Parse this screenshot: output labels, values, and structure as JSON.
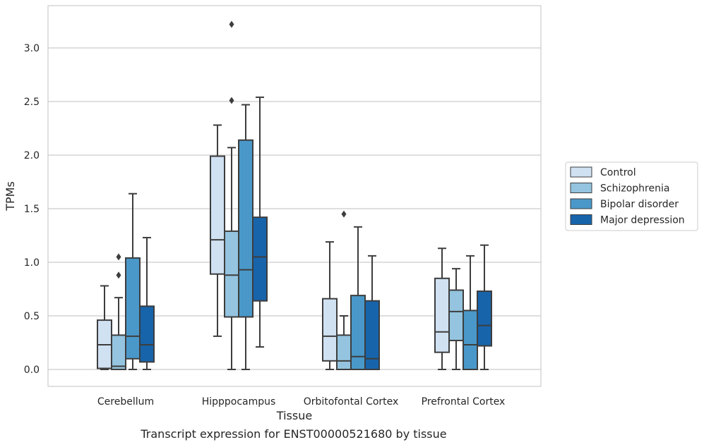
{
  "chart_data": {
    "type": "box",
    "xlabel": "Tissue",
    "ylabel": "TPMs",
    "ylim": [
      -0.16,
      3.4
    ],
    "yticks": [
      "0.0",
      "0.5",
      "1.0",
      "1.5",
      "2.0",
      "2.5",
      "3.0"
    ],
    "categories": [
      "Cerebellum",
      "Hipppocampus",
      "Orbitofontal Cortex",
      "Prefrontal Cortex"
    ],
    "legend_position": "right",
    "series": [
      {
        "name": "Control",
        "color": "#d0e1f2",
        "boxes": [
          {
            "whislo": 0.0,
            "q1": 0.01,
            "med": 0.23,
            "q3": 0.46,
            "whishi": 0.78,
            "fliers": []
          },
          {
            "whislo": 0.31,
            "q1": 0.89,
            "med": 1.21,
            "q3": 1.99,
            "whishi": 2.28,
            "fliers": []
          },
          {
            "whislo": 0.0,
            "q1": 0.08,
            "med": 0.31,
            "q3": 0.66,
            "whishi": 1.19,
            "fliers": []
          },
          {
            "whislo": 0.0,
            "q1": 0.16,
            "med": 0.35,
            "q3": 0.85,
            "whishi": 1.13,
            "fliers": []
          }
        ]
      },
      {
        "name": "Schizophrenia",
        "color": "#94c4df",
        "boxes": [
          {
            "whislo": 0.0,
            "q1": 0.0,
            "med": 0.03,
            "q3": 0.32,
            "whishi": 0.67,
            "fliers": [
              0.88,
              1.05
            ]
          },
          {
            "whislo": 0.0,
            "q1": 0.49,
            "med": 0.88,
            "q3": 1.29,
            "whishi": 2.07,
            "fliers": [
              2.51,
              3.22
            ]
          },
          {
            "whislo": 0.0,
            "q1": 0.0,
            "med": 0.08,
            "q3": 0.32,
            "whishi": 0.5,
            "fliers": [
              1.45
            ]
          },
          {
            "whislo": 0.0,
            "q1": 0.27,
            "med": 0.54,
            "q3": 0.74,
            "whishi": 0.94,
            "fliers": []
          }
        ]
      },
      {
        "name": "Bipolar disorder",
        "color": "#4a98c9",
        "boxes": [
          {
            "whislo": 0.0,
            "q1": 0.1,
            "med": 0.31,
            "q3": 1.04,
            "whishi": 1.64,
            "fliers": []
          },
          {
            "whislo": 0.0,
            "q1": 0.49,
            "med": 0.93,
            "q3": 2.14,
            "whishi": 2.47,
            "fliers": []
          },
          {
            "whislo": 0.0,
            "q1": 0.0,
            "med": 0.12,
            "q3": 0.69,
            "whishi": 1.33,
            "fliers": []
          },
          {
            "whislo": 0.0,
            "q1": 0.0,
            "med": 0.23,
            "q3": 0.55,
            "whishi": 1.06,
            "fliers": []
          }
        ]
      },
      {
        "name": "Major depression",
        "color": "#1764ab",
        "boxes": [
          {
            "whislo": 0.0,
            "q1": 0.07,
            "med": 0.23,
            "q3": 0.59,
            "whishi": 1.23,
            "fliers": []
          },
          {
            "whislo": 0.21,
            "q1": 0.64,
            "med": 1.05,
            "q3": 1.42,
            "whishi": 2.54,
            "fliers": []
          },
          {
            "whislo": 0.0,
            "q1": 0.0,
            "med": 0.1,
            "q3": 0.64,
            "whishi": 1.06,
            "fliers": []
          },
          {
            "whislo": 0.0,
            "q1": 0.22,
            "med": 0.41,
            "q3": 0.73,
            "whishi": 1.16,
            "fliers": []
          }
        ]
      }
    ],
    "caption": "Transcript expression for ENST00000521680 by tissue"
  }
}
